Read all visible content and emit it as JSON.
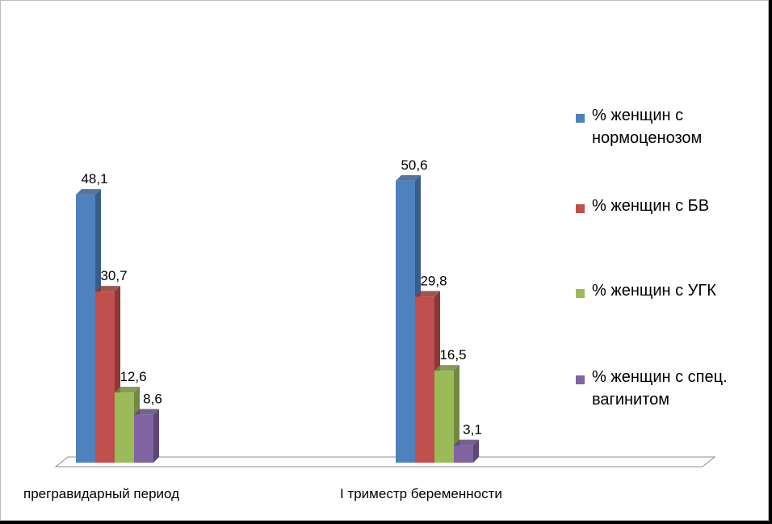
{
  "chart_data": {
    "type": "bar",
    "categories": [
      "прегравидарный период",
      "I триместр беременности"
    ],
    "series": [
      {
        "name": "% женщин с нормоценозом",
        "values": [
          48.1,
          50.6
        ],
        "labels": [
          "48,1",
          "50,6"
        ],
        "color": "#4F81BD",
        "side": "#385D8A"
      },
      {
        "name": "% женщин с БВ",
        "values": [
          30.7,
          29.8
        ],
        "labels": [
          "30,7",
          "29,8"
        ],
        "color": "#C0504D",
        "side": "#8C3836"
      },
      {
        "name": "% женщин с УГК",
        "values": [
          12.6,
          16.5
        ],
        "labels": [
          "12,6",
          "16,5"
        ],
        "color": "#9BBB59",
        "side": "#71893F"
      },
      {
        "name": "% женщин с спец. вагинитом",
        "values": [
          8.6,
          3.1
        ],
        "labels": [
          "8,6",
          "3,1"
        ],
        "color": "#8064A2",
        "side": "#5C4776"
      }
    ],
    "legend_position": "right",
    "grid": false,
    "ylim": [
      0,
      55
    ]
  }
}
